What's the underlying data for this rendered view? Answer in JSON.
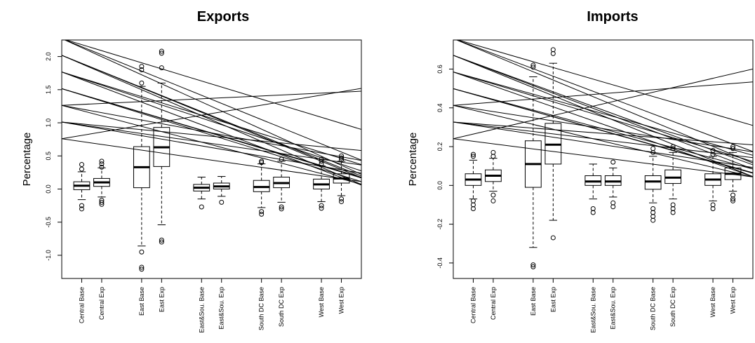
{
  "chart_data": [
    {
      "type": "box",
      "title": "Exports",
      "ylabel": "Percentage",
      "xlabel": "",
      "ylim": [
        -1.35,
        2.25
      ],
      "yticks": [
        -1.0,
        -0.5,
        0.0,
        0.5,
        1.0,
        1.5,
        2.0
      ],
      "ytick_labels": [
        "-1.0",
        "-0.5",
        "0.0",
        "0.5",
        "1.0",
        "1.5",
        "2.0"
      ],
      "categories": [
        "Central Base",
        "Central Exp",
        "East Base",
        "East Exp",
        "East&Sou. Base",
        "East&Sou. Exp",
        "South DC Base",
        "South DC Exp",
        "West Base",
        "West Exp"
      ],
      "positions": [
        1,
        2,
        4,
        5,
        7,
        8,
        10,
        11,
        13,
        14
      ],
      "xlim": [
        0,
        15
      ],
      "boxes": [
        {
          "whisker_low": -0.16,
          "q1": -0.01,
          "median": 0.05,
          "q3": 0.11,
          "whisker_high": 0.26,
          "outliers": [
            -0.25,
            -0.3,
            0.3,
            0.37
          ]
        },
        {
          "whisker_low": -0.12,
          "q1": 0.04,
          "median": 0.1,
          "q3": 0.16,
          "whisker_high": 0.32,
          "outliers": [
            -0.17,
            -0.2,
            -0.23,
            0.33,
            0.38,
            0.42
          ]
        },
        {
          "whisker_low": -0.86,
          "q1": 0.02,
          "median": 0.33,
          "q3": 0.64,
          "whisker_high": 1.55,
          "outliers": [
            -0.95,
            -1.18,
            -1.21,
            1.6,
            1.8,
            1.85
          ]
        },
        {
          "whisker_low": -0.54,
          "q1": 0.34,
          "median": 0.63,
          "q3": 0.93,
          "whisker_high": 1.6,
          "outliers": [
            -0.77,
            -0.8,
            1.83,
            2.05,
            2.08
          ]
        },
        {
          "whisker_low": -0.15,
          "q1": -0.03,
          "median": 0.02,
          "q3": 0.07,
          "whisker_high": 0.18,
          "outliers": [
            -0.27
          ]
        },
        {
          "whisker_low": -0.11,
          "q1": 0.0,
          "median": 0.04,
          "q3": 0.09,
          "whisker_high": 0.19,
          "outliers": [
            -0.2
          ]
        },
        {
          "whisker_low": -0.28,
          "q1": -0.04,
          "median": 0.03,
          "q3": 0.13,
          "whisker_high": 0.38,
          "outliers": [
            -0.34,
            -0.38,
            0.4,
            0.42
          ]
        },
        {
          "whisker_low": -0.2,
          "q1": 0.02,
          "median": 0.09,
          "q3": 0.18,
          "whisker_high": 0.42,
          "outliers": [
            -0.27,
            -0.3,
            0.45
          ]
        },
        {
          "whisker_low": -0.19,
          "q1": 0.0,
          "median": 0.07,
          "q3": 0.15,
          "whisker_high": 0.35,
          "outliers": [
            -0.25,
            -0.29,
            0.38,
            0.42,
            0.45
          ]
        },
        {
          "whisker_low": -0.1,
          "q1": 0.09,
          "median": 0.16,
          "q3": 0.23,
          "whisker_high": 0.42,
          "outliers": [
            -0.15,
            -0.19,
            0.44,
            0.47,
            0.5
          ]
        }
      ]
    },
    {
      "type": "box",
      "title": "Imports",
      "ylabel": "Percentage",
      "xlabel": "",
      "ylim": [
        -0.48,
        0.75
      ],
      "yticks": [
        -0.4,
        -0.2,
        0.0,
        0.2,
        0.4,
        0.6
      ],
      "ytick_labels": [
        "-0.4",
        "-0.2",
        "0.0",
        "0.2",
        "0.4",
        "0.6"
      ],
      "categories": [
        "Central Base",
        "Central Exp",
        "East Base",
        "East Exp",
        "East&Sou. Base",
        "East&Sou. Exp",
        "South DC Base",
        "South DC Exp",
        "West Base",
        "West Exp"
      ],
      "positions": [
        1,
        2,
        4,
        5,
        7,
        8,
        10,
        11,
        13,
        14
      ],
      "xlim": [
        0,
        15
      ],
      "boxes": [
        {
          "whisker_low": -0.07,
          "q1": 0.0,
          "median": 0.03,
          "q3": 0.06,
          "whisker_high": 0.13,
          "outliers": [
            -0.08,
            -0.1,
            -0.12,
            0.15,
            0.16
          ]
        },
        {
          "whisker_low": -0.03,
          "q1": 0.02,
          "median": 0.05,
          "q3": 0.08,
          "whisker_high": 0.14,
          "outliers": [
            -0.05,
            -0.08,
            0.15,
            0.17
          ]
        },
        {
          "whisker_low": -0.32,
          "q1": -0.01,
          "median": 0.11,
          "q3": 0.23,
          "whisker_high": 0.56,
          "outliers": [
            -0.41,
            -0.42,
            0.61,
            0.62
          ]
        },
        {
          "whisker_low": -0.18,
          "q1": 0.11,
          "median": 0.21,
          "q3": 0.32,
          "whisker_high": 0.63,
          "outliers": [
            -0.27,
            0.68,
            0.7
          ]
        },
        {
          "whisker_low": -0.07,
          "q1": 0.0,
          "median": 0.02,
          "q3": 0.05,
          "whisker_high": 0.11,
          "outliers": [
            -0.12,
            -0.14
          ]
        },
        {
          "whisker_low": -0.06,
          "q1": 0.0,
          "median": 0.02,
          "q3": 0.05,
          "whisker_high": 0.09,
          "outliers": [
            -0.09,
            -0.11,
            0.12
          ]
        },
        {
          "whisker_low": -0.09,
          "q1": -0.02,
          "median": 0.02,
          "q3": 0.05,
          "whisker_high": 0.15,
          "outliers": [
            -0.12,
            -0.14,
            -0.16,
            -0.18,
            0.17,
            0.19
          ]
        },
        {
          "whisker_low": -0.07,
          "q1": 0.01,
          "median": 0.04,
          "q3": 0.08,
          "whisker_high": 0.17,
          "outliers": [
            -0.1,
            -0.12,
            -0.14,
            0.19,
            0.2
          ]
        },
        {
          "whisker_low": -0.08,
          "q1": 0.0,
          "median": 0.03,
          "q3": 0.06,
          "whisker_high": 0.15,
          "outliers": [
            -0.1,
            -0.12,
            0.16,
            0.18
          ]
        },
        {
          "whisker_low": -0.03,
          "q1": 0.03,
          "median": 0.06,
          "q3": 0.09,
          "whisker_high": 0.17,
          "outliers": [
            -0.05,
            -0.07,
            -0.08,
            0.19,
            0.2
          ]
        }
      ]
    }
  ]
}
